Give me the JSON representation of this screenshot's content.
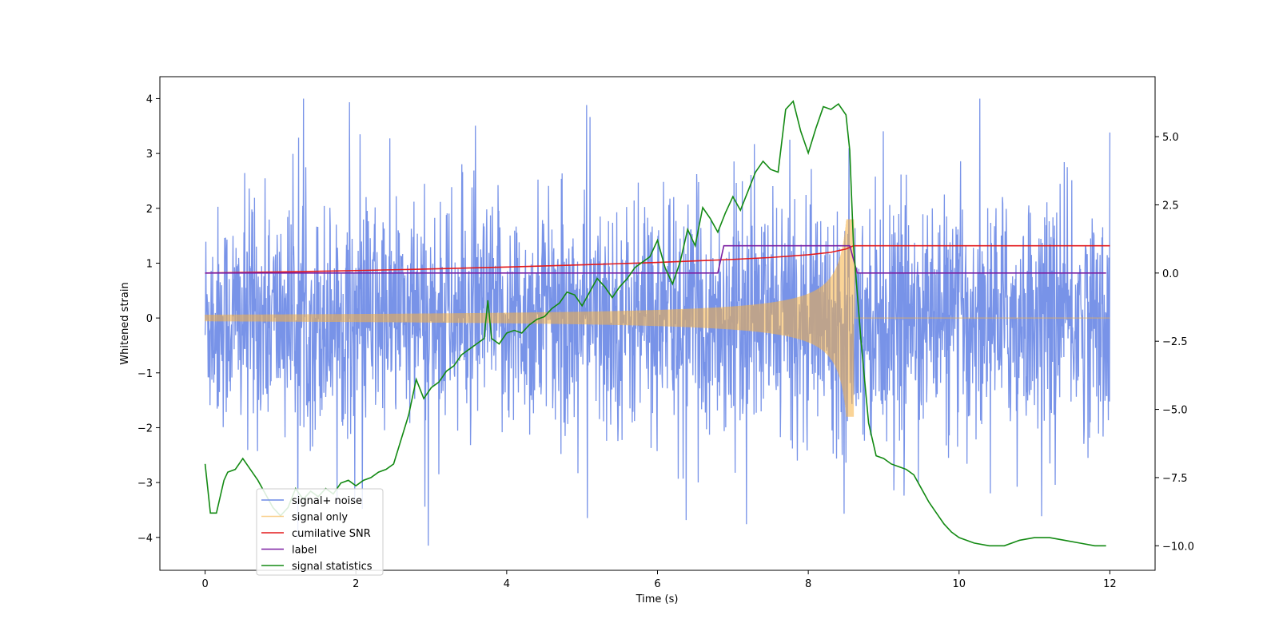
{
  "chart_data": {
    "type": "line",
    "xlabel": "Time (s)",
    "ylabel": "Whitened strain",
    "xlim": [
      -0.6,
      12.6
    ],
    "ylim_left": [
      -4.6,
      4.4
    ],
    "ylim_right": [
      -10.9,
      7.2
    ],
    "x_ticks": [
      0,
      2,
      4,
      6,
      8,
      10,
      12
    ],
    "y_ticks_left": [
      -4,
      -3,
      -2,
      -1,
      0,
      1,
      2,
      3,
      4
    ],
    "y_ticks_right": [
      -10.0,
      -7.5,
      -5.0,
      -2.5,
      0.0,
      2.5,
      5.0
    ],
    "x_tick_labels": [
      "0",
      "2",
      "4",
      "6",
      "8",
      "10",
      "12"
    ],
    "y_tick_labels_left": [
      "−4",
      "−3",
      "−2",
      "−1",
      "0",
      "1",
      "2",
      "3",
      "4"
    ],
    "y_tick_labels_right": [
      "−10.0",
      "−7.5",
      "−5.0",
      "−2.5",
      "0.0",
      "2.5",
      "5.0"
    ],
    "legend_position": "lower-left",
    "grid": false,
    "series": [
      {
        "name": "signal+ noise",
        "color": "#6d8ae6",
        "axis": "left",
        "kind": "noise",
        "x_range": [
          0,
          12
        ],
        "typical_amplitude": 2.2,
        "peak_amplitude": 4.0
      },
      {
        "name": "signal only",
        "color": "#f5b041",
        "axis": "left",
        "kind": "chirp",
        "x_range": [
          0,
          12
        ],
        "merger_time": 8.6,
        "amplitude_start": 0.06,
        "amplitude_at_merger": 1.8
      },
      {
        "name": "cumilative SNR",
        "color": "#e41a1c",
        "axis": "right",
        "x": [
          0,
          1,
          2,
          3,
          4,
          5,
          6,
          7,
          7.5,
          8,
          8.3,
          8.5,
          8.6,
          9,
          10,
          11,
          12
        ],
        "y": [
          0.0,
          0.04,
          0.09,
          0.15,
          0.22,
          0.3,
          0.39,
          0.5,
          0.57,
          0.67,
          0.76,
          0.88,
          1.0,
          1.0,
          1.0,
          1.0,
          1.0
        ]
      },
      {
        "name": "label",
        "color": "#7b1fa2",
        "axis": "right",
        "x": [
          0,
          6.8,
          6.88,
          8.55,
          8.65,
          11.95
        ],
        "y": [
          0.0,
          0.0,
          1.0,
          1.0,
          0.0,
          0.0
        ]
      },
      {
        "name": "signal statistics",
        "color": "#138a13",
        "axis": "right",
        "x": [
          0,
          0.07,
          0.15,
          0.25,
          0.3,
          0.4,
          0.5,
          0.6,
          0.7,
          0.8,
          0.9,
          1.0,
          1.1,
          1.2,
          1.3,
          1.4,
          1.5,
          1.6,
          1.7,
          1.8,
          1.9,
          2.0,
          2.1,
          2.2,
          2.3,
          2.4,
          2.5,
          2.6,
          2.7,
          2.8,
          2.9,
          3.0,
          3.1,
          3.2,
          3.3,
          3.4,
          3.5,
          3.6,
          3.7,
          3.75,
          3.8,
          3.9,
          4.0,
          4.1,
          4.2,
          4.3,
          4.4,
          4.5,
          4.6,
          4.7,
          4.8,
          4.9,
          5.0,
          5.1,
          5.2,
          5.3,
          5.4,
          5.5,
          5.6,
          5.7,
          5.8,
          5.9,
          6.0,
          6.1,
          6.2,
          6.3,
          6.4,
          6.5,
          6.6,
          6.7,
          6.8,
          6.9,
          7.0,
          7.1,
          7.2,
          7.3,
          7.4,
          7.5,
          7.6,
          7.7,
          7.8,
          7.9,
          8.0,
          8.1,
          8.2,
          8.3,
          8.4,
          8.5,
          8.55,
          8.6,
          8.7,
          8.8,
          8.9,
          9.0,
          9.1,
          9.2,
          9.3,
          9.4,
          9.5,
          9.6,
          9.7,
          9.8,
          9.9,
          10.0,
          10.2,
          10.4,
          10.6,
          10.8,
          11.0,
          11.2,
          11.4,
          11.6,
          11.8,
          11.95
        ],
        "y": [
          -7.0,
          -8.8,
          -8.8,
          -7.6,
          -7.3,
          -7.2,
          -6.8,
          -7.2,
          -7.6,
          -8.1,
          -8.6,
          -8.9,
          -8.6,
          -7.9,
          -8.3,
          -8.0,
          -8.2,
          -7.9,
          -8.1,
          -7.7,
          -7.6,
          -7.8,
          -7.6,
          -7.5,
          -7.3,
          -7.2,
          -7.0,
          -6.1,
          -5.2,
          -3.9,
          -4.6,
          -4.2,
          -4.0,
          -3.6,
          -3.4,
          -3.0,
          -2.8,
          -2.6,
          -2.4,
          -1.0,
          -2.4,
          -2.6,
          -2.2,
          -2.1,
          -2.2,
          -1.9,
          -1.7,
          -1.6,
          -1.3,
          -1.1,
          -0.7,
          -0.8,
          -1.2,
          -0.7,
          -0.2,
          -0.5,
          -0.9,
          -0.5,
          -0.2,
          0.2,
          0.4,
          0.6,
          1.2,
          0.2,
          -0.4,
          0.4,
          1.6,
          1.0,
          2.4,
          2.0,
          1.5,
          2.2,
          2.8,
          2.3,
          3.0,
          3.7,
          4.1,
          3.8,
          3.7,
          6.0,
          6.3,
          5.2,
          4.4,
          5.3,
          6.1,
          6.0,
          6.2,
          5.8,
          4.5,
          1.0,
          -2.5,
          -5.5,
          -6.7,
          -6.8,
          -7.0,
          -7.1,
          -7.2,
          -7.4,
          -7.9,
          -8.4,
          -8.8,
          -9.2,
          -9.5,
          -9.7,
          -9.9,
          -10.0,
          -10.0,
          -9.8,
          -9.7,
          -9.7,
          -9.8,
          -9.9,
          -10.0,
          -10.0
        ]
      }
    ]
  }
}
